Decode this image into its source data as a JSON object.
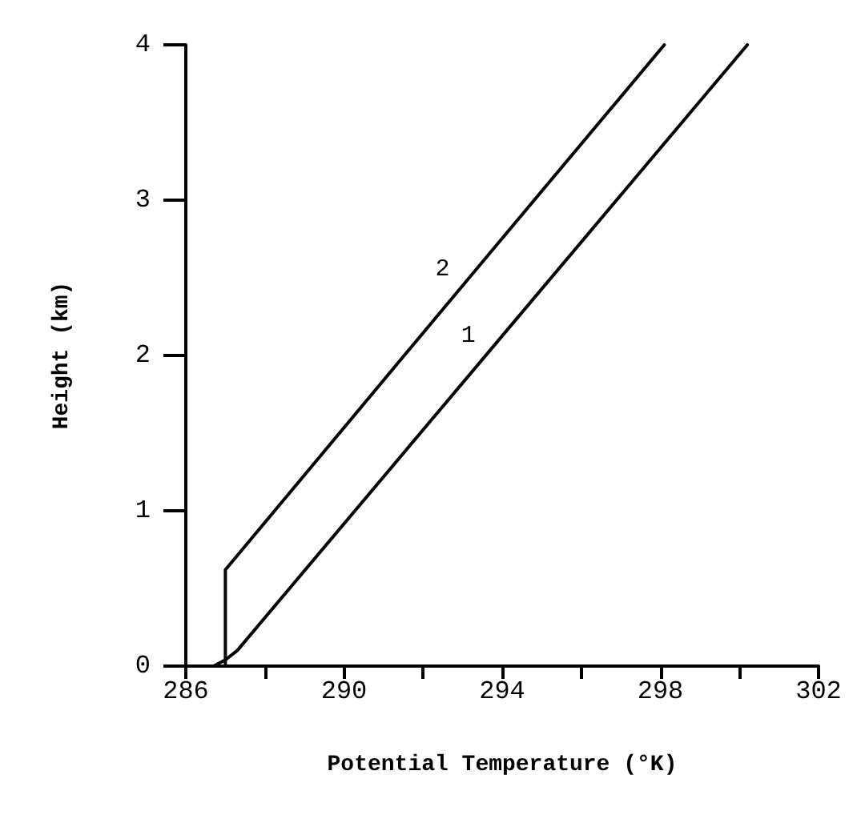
{
  "chart_data": {
    "type": "line",
    "xlabel": "Potential Temperature (°K)",
    "ylabel": "Height (km)",
    "xlim": [
      286,
      302
    ],
    "xticks": [
      286,
      {
        "value": 288,
        "label": null
      },
      290,
      {
        "value": 292,
        "label": null
      },
      294,
      {
        "value": 296,
        "label": null
      },
      298,
      {
        "value": 300,
        "label": null
      },
      302
    ],
    "ylim": [
      0,
      4
    ],
    "yticks": [
      0,
      1,
      2,
      3,
      4
    ],
    "grid": false,
    "legend": false,
    "marker": "none",
    "line_style": "solid",
    "series": [
      {
        "name": "1",
        "color": "#000000",
        "x": [
          286.7,
          287.0,
          287.3,
          293.65,
          300.2
        ],
        "values": [
          0,
          0.04,
          0.1,
          2.02,
          4.0
        ]
      },
      {
        "name": "2",
        "color": "#000000",
        "x": [
          286.7,
          287.0,
          287.0,
          293.0,
          298.1
        ],
        "values": [
          0,
          0,
          0.62,
          2.45,
          4.0
        ]
      }
    ]
  }
}
